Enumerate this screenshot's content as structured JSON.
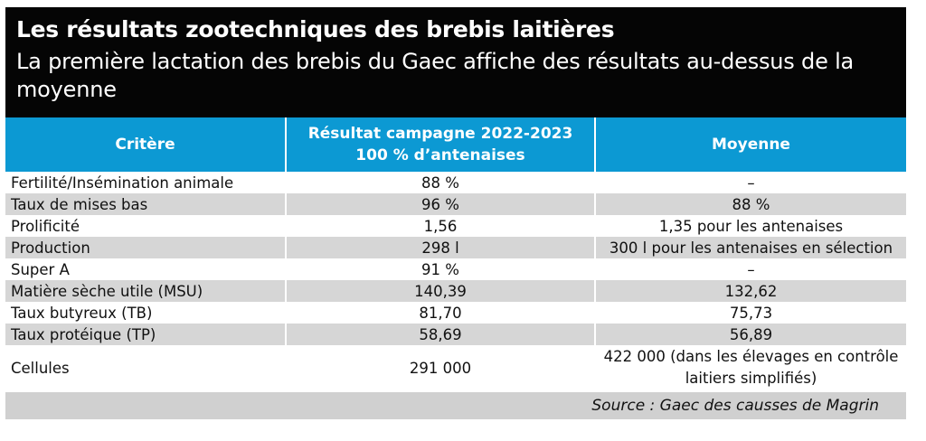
{
  "header": {
    "title": "Les résultats zootechniques des brebis laitières",
    "subtitle": "La première lactation des brebis du Gaec affiche des résultats au-dessus de la moyenne"
  },
  "table": {
    "columns": [
      "Critère",
      "Résultat campagne 2022-2023\n100 % d’antenaises",
      "Moyenne"
    ],
    "rows": [
      [
        "Fertilité/Insémination animale",
        "88 %",
        "–"
      ],
      [
        "Taux de mises bas",
        "96 %",
        "88 %"
      ],
      [
        "Prolificité",
        "1,56",
        "1,35 pour les antenaises"
      ],
      [
        "Production",
        "298 l",
        "300 l pour les antenaises en sélection"
      ],
      [
        "Super A",
        "91 %",
        "–"
      ],
      [
        "Matière sèche utile (MSU)",
        "140,39",
        "132,62"
      ],
      [
        "Taux butyreux (TB)",
        "81,70",
        "75,73"
      ],
      [
        "Taux protéique (TP)",
        "58,69",
        "56,89"
      ],
      [
        "Cellules",
        "291 000",
        "422 000 (dans les élevages en contrôle laitiers simplifiés)"
      ]
    ]
  },
  "footer": {
    "source": "Source : Gaec des causses de Magrin"
  },
  "colors": {
    "header_bg": "#050505",
    "table_header_bg": "#0c99d3",
    "stripe": "#d6d6d6",
    "source_bg": "#d0d0d0"
  }
}
